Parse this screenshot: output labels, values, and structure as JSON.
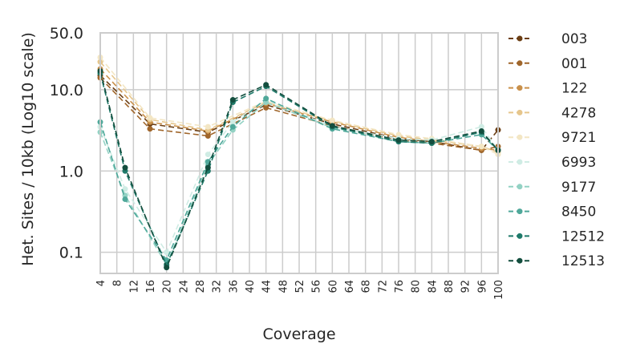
{
  "chart_data": {
    "type": "line",
    "xlabel": "Coverage",
    "ylabel": "Het. Sites / 10kb (Log10 scale)",
    "yscale": "log",
    "xlim": [
      4,
      100
    ],
    "ylim": [
      0.055,
      50
    ],
    "x_ticks": [
      4,
      8,
      12,
      16,
      20,
      24,
      28,
      32,
      36,
      40,
      44,
      48,
      52,
      56,
      60,
      64,
      68,
      72,
      76,
      80,
      84,
      88,
      92,
      96,
      100
    ],
    "x_tick_labels": [
      "4",
      "8",
      "12",
      "16",
      "20",
      "24",
      "28",
      "32",
      "36",
      "40",
      "44",
      "48",
      "52",
      "56",
      "60",
      "64",
      "68",
      "72",
      "76",
      "80",
      "84",
      "88",
      "92",
      "96",
      "100"
    ],
    "y_ticks": [
      0.1,
      1.0,
      10.0,
      50.0
    ],
    "y_tick_labels": [
      "0.1",
      "1.0",
      "10.0",
      "50.0"
    ],
    "grid": true,
    "legend_position": "right",
    "line_style": "dashed with dot markers",
    "series": [
      {
        "name": "003",
        "color": "#6b3e14",
        "x": [
          4,
          16,
          30,
          44,
          60,
          76,
          84,
          96,
          100
        ],
        "y": [
          15,
          3.8,
          3.0,
          6.5,
          3.8,
          2.5,
          2.3,
          1.8,
          3.2
        ]
      },
      {
        "name": "001",
        "color": "#a0662b",
        "x": [
          4,
          16,
          30,
          44,
          60,
          76,
          84,
          96,
          100
        ],
        "y": [
          14,
          3.3,
          2.7,
          6.0,
          3.6,
          2.4,
          2.2,
          1.8,
          2.0
        ]
      },
      {
        "name": "122",
        "color": "#c9904a",
        "x": [
          4,
          16,
          30,
          44,
          60,
          76,
          84,
          96,
          100
        ],
        "y": [
          18,
          4.0,
          3.1,
          6.8,
          4.0,
          2.6,
          2.3,
          1.9,
          1.8
        ]
      },
      {
        "name": "4278",
        "color": "#e6c68c",
        "x": [
          4,
          16,
          30,
          44,
          60,
          76,
          84,
          96,
          100
        ],
        "y": [
          22,
          4.3,
          3.2,
          7.0,
          4.1,
          2.7,
          2.4,
          2.0,
          1.7
        ]
      },
      {
        "name": "9721",
        "color": "#f3e6c4",
        "x": [
          4,
          16,
          30,
          44,
          60,
          76,
          84,
          96,
          100
        ],
        "y": [
          25,
          4.5,
          3.5,
          7.2,
          4.2,
          2.8,
          2.5,
          2.0,
          1.6
        ]
      },
      {
        "name": "6993",
        "color": "#cfece4",
        "x": [
          4,
          10,
          20,
          30,
          36,
          44,
          60,
          76,
          84,
          96,
          100
        ],
        "y": [
          3.5,
          0.6,
          0.1,
          1.6,
          4.0,
          7.5,
          3.5,
          2.5,
          2.4,
          3.5,
          1.8
        ]
      },
      {
        "name": "9177",
        "color": "#93d2c4",
        "x": [
          4,
          10,
          20,
          30,
          36,
          44,
          60,
          76,
          84,
          96,
          100
        ],
        "y": [
          3.0,
          0.5,
          0.07,
          1.2,
          3.2,
          7.0,
          3.4,
          2.4,
          2.3,
          3.0,
          1.8
        ]
      },
      {
        "name": "8450",
        "color": "#4fa89a",
        "x": [
          4,
          10,
          20,
          30,
          36,
          44,
          60,
          76,
          84,
          96,
          100
        ],
        "y": [
          4.0,
          0.45,
          0.08,
          1.3,
          3.5,
          7.8,
          3.3,
          2.3,
          2.2,
          2.8,
          1.8
        ]
      },
      {
        "name": "12512",
        "color": "#1f7a6a",
        "x": [
          4,
          10,
          20,
          30,
          36,
          44,
          60,
          76,
          84,
          96,
          100
        ],
        "y": [
          16,
          1.0,
          0.07,
          1.0,
          7.0,
          11.0,
          3.5,
          2.3,
          2.2,
          3.0,
          1.8
        ]
      },
      {
        "name": "12513",
        "color": "#134e3e",
        "x": [
          4,
          10,
          20,
          30,
          36,
          44,
          60,
          76,
          84,
          96,
          100
        ],
        "y": [
          17,
          1.1,
          0.065,
          1.1,
          7.5,
          11.5,
          3.6,
          2.4,
          2.3,
          3.1,
          1.8
        ]
      }
    ]
  }
}
